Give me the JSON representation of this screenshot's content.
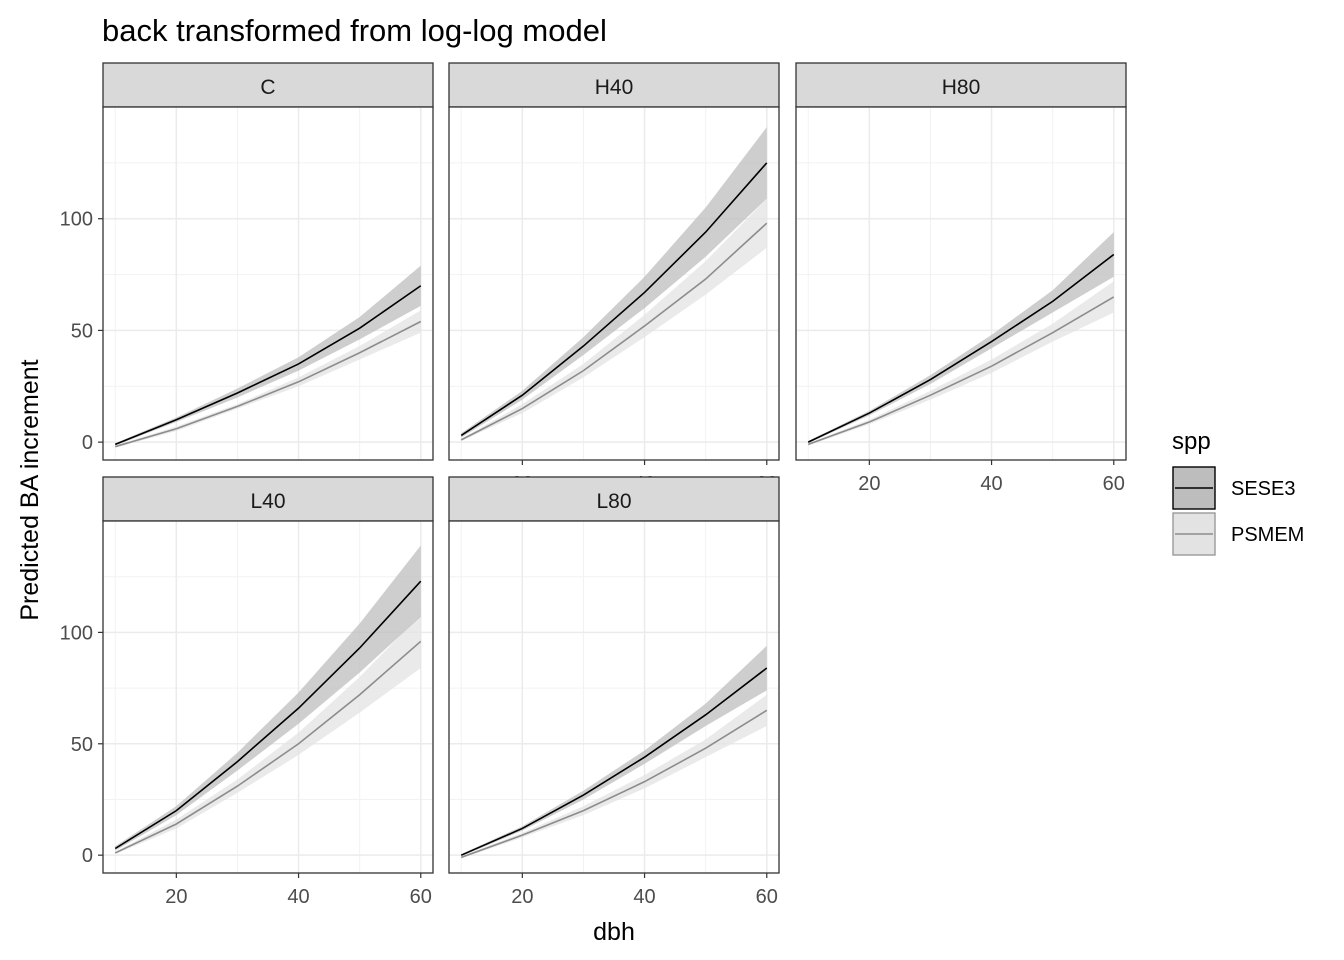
{
  "chart_data": {
    "type": "line",
    "title": "back transformed from log-log model",
    "xlabel": "dbh",
    "ylabel": "Predicted BA increment",
    "xlim": [
      8,
      62
    ],
    "ylim": [
      -8,
      150
    ],
    "xticks": [
      20,
      40,
      60
    ],
    "yticks": [
      0,
      50,
      100
    ],
    "x_tick_labels": [
      "20",
      "40",
      "60"
    ],
    "y_tick_labels": [
      "0",
      "50",
      "100"
    ],
    "grid": true,
    "legend": {
      "title": "spp",
      "position": "right",
      "entries": [
        {
          "label": "SESE3",
          "line_color": "#000000",
          "ribbon_color": "#bdbdbd"
        },
        {
          "label": "PSMEM",
          "line_color": "#8c8c8c",
          "ribbon_color": "#e3e3e3"
        }
      ]
    },
    "x": [
      10,
      20,
      30,
      40,
      50,
      60
    ],
    "panels": [
      {
        "label": "C",
        "series": [
          {
            "name": "SESE3",
            "y": [
              -1,
              10,
              22,
              35,
              51,
              70
            ],
            "lower": [
              -1.5,
              9,
              20,
              32,
              46,
              61
            ],
            "upper": [
              -0.5,
              11,
              24,
              38,
              56,
              79
            ]
          },
          {
            "name": "PSMEM",
            "y": [
              -2,
              6,
              16,
              27,
              40,
              54
            ],
            "lower": [
              -2.5,
              5,
              15,
              25,
              37,
              49
            ],
            "upper": [
              -1.5,
              7,
              17,
              29,
              43,
              59
            ]
          }
        ]
      },
      {
        "label": "H40",
        "series": [
          {
            "name": "SESE3",
            "y": [
              3,
              21,
              43,
              67,
              94,
              125
            ],
            "lower": [
              2,
              19,
              39,
              60,
              83,
              109
            ],
            "upper": [
              4,
              23,
              47,
              74,
              105,
              141
            ]
          },
          {
            "name": "PSMEM",
            "y": [
              1,
              15,
              32,
              52,
              73,
              98
            ],
            "lower": [
              0.5,
              13,
              29,
              47,
              66,
              87
            ],
            "upper": [
              1.5,
              17,
              35,
              57,
              81,
              109
            ]
          }
        ]
      },
      {
        "label": "H80",
        "series": [
          {
            "name": "SESE3",
            "y": [
              0,
              13,
              28,
              45,
              63,
              84
            ],
            "lower": [
              -0.5,
              12,
              26,
              42,
              58,
              74
            ],
            "upper": [
              0.5,
              14,
              30,
              48,
              68,
              94
            ]
          },
          {
            "name": "PSMEM",
            "y": [
              -1,
              9,
              21,
              34,
              49,
              65
            ],
            "lower": [
              -1.5,
              8,
              19,
              31,
              45,
              58
            ],
            "upper": [
              -0.5,
              10,
              23,
              37,
              53,
              72
            ]
          }
        ]
      },
      {
        "label": "L40",
        "series": [
          {
            "name": "SESE3",
            "y": [
              3,
              20,
              42,
              66,
              93,
              123
            ],
            "lower": [
              2,
              18,
              38,
              59,
              82,
              107
            ],
            "upper": [
              4,
              22,
              46,
              73,
              104,
              139
            ]
          },
          {
            "name": "PSMEM",
            "y": [
              1,
              14,
              31,
              50,
              72,
              96
            ],
            "lower": [
              0.5,
              12,
              28,
              45,
              64,
              84
            ],
            "upper": [
              1.5,
              16,
              34,
              55,
              80,
              108
            ]
          }
        ]
      },
      {
        "label": "L80",
        "series": [
          {
            "name": "SESE3",
            "y": [
              0,
              12,
              27,
              44,
              63,
              84
            ],
            "lower": [
              -0.5,
              11,
              25,
              41,
              58,
              74
            ],
            "upper": [
              0.5,
              13,
              29,
              47,
              68,
              94
            ]
          },
          {
            "name": "PSMEM",
            "y": [
              -1,
              9,
              20,
              33,
              48,
              65
            ],
            "lower": [
              -1.5,
              8,
              18,
              30,
              44,
              58
            ],
            "upper": [
              -0.5,
              10,
              22,
              36,
              52,
              72
            ]
          }
        ]
      }
    ]
  }
}
